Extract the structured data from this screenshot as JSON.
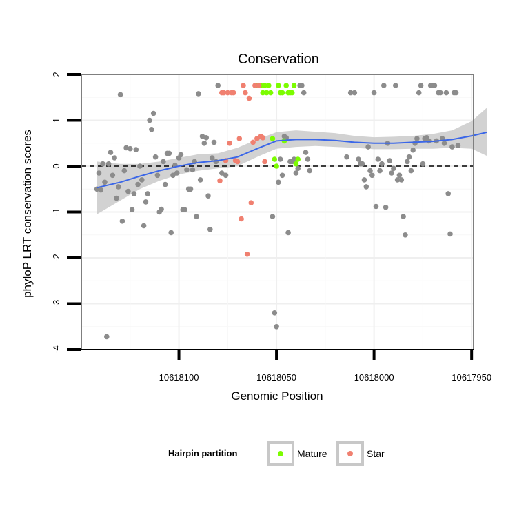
{
  "colors": {
    "other": "#8c8c8c",
    "mature": "#7cfc00",
    "star": "#f08070",
    "smooth": "#3a66e8",
    "ribbon": "#c7c7c7",
    "frame": "#7f7f7f",
    "grid": "#efefef"
  },
  "chart_data": {
    "type": "scatter",
    "title": "Conservation",
    "xlabel": "Genomic Position",
    "ylabel": "phyloP LRT conservation scores",
    "xlim": [
      10618150,
      10617949
    ],
    "x_reversed": true,
    "ylim": [
      -4,
      2
    ],
    "x_ticks": [
      10618100,
      10618050,
      10618000,
      10617950
    ],
    "x_tick_labels": [
      "10618100",
      "10618050",
      "10618000",
      "10617950"
    ],
    "y_ticks": [
      -4,
      -3,
      -2,
      -1,
      0,
      1,
      2
    ],
    "y_tick_labels": [
      "-4",
      "-3",
      "-2",
      "-1",
      "0",
      "1",
      "2"
    ],
    "reference_line": {
      "y": 0,
      "style": "dashed"
    },
    "grid": true,
    "legend": {
      "title": "Hairpin partition",
      "position": "bottom",
      "entries": [
        {
          "name": "Mature",
          "color_key": "mature"
        },
        {
          "name": "Star",
          "color_key": "star"
        }
      ]
    },
    "series": [
      {
        "name": "",
        "color_key": "other",
        "points": [
          [
            10618142,
            -0.5
          ],
          [
            10618141,
            -0.15
          ],
          [
            10618140,
            -0.52
          ],
          [
            10618139,
            0.05
          ],
          [
            10618138,
            -0.35
          ],
          [
            10618137,
            -3.72
          ],
          [
            10618136,
            0.05
          ],
          [
            10618135,
            0.3
          ],
          [
            10618134,
            -0.2
          ],
          [
            10618133,
            0.18
          ],
          [
            10618132,
            -0.7
          ],
          [
            10618131,
            -0.45
          ],
          [
            10618130,
            1.56
          ],
          [
            10618129,
            -1.2
          ],
          [
            10618128,
            -0.1
          ],
          [
            10618127,
            0.4
          ],
          [
            10618126,
            -0.55
          ],
          [
            10618125,
            0.38
          ],
          [
            10618124,
            -0.95
          ],
          [
            10618123,
            -0.6
          ],
          [
            10618122,
            0.36
          ],
          [
            10618121,
            -0.4
          ],
          [
            10618120,
            0.0
          ],
          [
            10618119,
            -0.3
          ],
          [
            10618118,
            -1.3
          ],
          [
            10618117,
            -0.78
          ],
          [
            10618116,
            -0.6
          ],
          [
            10618115,
            1.0
          ],
          [
            10618114,
            0.8
          ],
          [
            10618113,
            1.15
          ],
          [
            10618112,
            0.2
          ],
          [
            10618111,
            -0.2
          ],
          [
            10618110,
            -1.0
          ],
          [
            10618109,
            -0.94
          ],
          [
            10618108,
            0.1
          ],
          [
            10618107,
            -0.4
          ],
          [
            10618106,
            0.28
          ],
          [
            10618105,
            0.28
          ],
          [
            10618104,
            -1.45
          ],
          [
            10618103,
            -0.2
          ],
          [
            10618102,
            0.02
          ],
          [
            10618101,
            -0.15
          ],
          [
            10618100,
            0.18
          ],
          [
            10618099,
            0.25
          ],
          [
            10618098,
            -0.95
          ],
          [
            10618097,
            -0.95
          ],
          [
            10618096,
            -0.08
          ],
          [
            10618095,
            -0.5
          ],
          [
            10618094,
            -0.5
          ],
          [
            10618093,
            -0.08
          ],
          [
            10618092,
            0.1
          ],
          [
            10618091,
            -1.1
          ],
          [
            10618090,
            1.58
          ],
          [
            10618089,
            -0.3
          ],
          [
            10618088,
            0.65
          ],
          [
            10618087,
            0.5
          ],
          [
            10618086,
            0.62
          ],
          [
            10618085,
            -0.65
          ],
          [
            10618084,
            -1.38
          ],
          [
            10618083,
            0.18
          ],
          [
            10618082,
            0.52
          ],
          [
            10618081,
            0.1
          ],
          [
            10618080,
            1.76
          ],
          [
            10618078,
            -0.15
          ],
          [
            10618076,
            -0.2
          ],
          [
            10618052,
            -1.1
          ],
          [
            10618051,
            -3.2
          ],
          [
            10618050,
            -3.5
          ],
          [
            10618049,
            -0.35
          ],
          [
            10618048,
            0.15
          ],
          [
            10618047,
            -0.2
          ],
          [
            10618046,
            0.65
          ],
          [
            10618045,
            0.62
          ],
          [
            10618044,
            -1.45
          ],
          [
            10618043,
            0.1
          ],
          [
            10618042,
            0.1
          ],
          [
            10618041,
            0.15
          ],
          [
            10618040,
            -0.15
          ],
          [
            10618039,
            -0.05
          ],
          [
            10618038,
            1.76
          ],
          [
            10618037,
            1.76
          ],
          [
            10618036,
            1.6
          ],
          [
            10618035,
            0.3
          ],
          [
            10618034,
            0.15
          ],
          [
            10618033,
            -0.1
          ],
          [
            10618014,
            0.2
          ],
          [
            10618012,
            1.6
          ],
          [
            10618010,
            1.6
          ],
          [
            10618008,
            0.15
          ],
          [
            10618007,
            0.05
          ],
          [
            10618006,
            0.05
          ],
          [
            10618005,
            -0.3
          ],
          [
            10618004,
            -0.45
          ],
          [
            10618003,
            0.42
          ],
          [
            10618002,
            -0.1
          ],
          [
            10618001,
            -0.2
          ],
          [
            10618000,
            1.6
          ],
          [
            10617999,
            -0.88
          ],
          [
            10617998,
            0.15
          ],
          [
            10617997,
            -0.1
          ],
          [
            10617996,
            0.05
          ],
          [
            10617995,
            1.76
          ],
          [
            10617994,
            -0.9
          ],
          [
            10617993,
            0.5
          ],
          [
            10617992,
            0.12
          ],
          [
            10617991,
            -0.15
          ],
          [
            10617990,
            -0.05
          ],
          [
            10617989,
            1.76
          ],
          [
            10617988,
            -0.3
          ],
          [
            10617987,
            -0.2
          ],
          [
            10617986,
            -0.3
          ],
          [
            10617985,
            -1.1
          ],
          [
            10617984,
            -1.5
          ],
          [
            10617983,
            0.1
          ],
          [
            10617982,
            0.2
          ],
          [
            10617981,
            -0.1
          ],
          [
            10617980,
            0.35
          ],
          [
            10617979,
            0.5
          ],
          [
            10617978,
            0.6
          ],
          [
            10617977,
            1.6
          ],
          [
            10617976,
            1.76
          ],
          [
            10617975,
            0.05
          ],
          [
            10617974,
            0.6
          ],
          [
            10617973,
            0.62
          ],
          [
            10617972,
            0.55
          ],
          [
            10617971,
            1.76
          ],
          [
            10617970,
            1.76
          ],
          [
            10617969,
            1.76
          ],
          [
            10617968,
            0.55
          ],
          [
            10617967,
            1.6
          ],
          [
            10617966,
            1.6
          ],
          [
            10617965,
            0.6
          ],
          [
            10617964,
            0.5
          ],
          [
            10617963,
            1.6
          ],
          [
            10617962,
            -0.6
          ],
          [
            10617961,
            -1.48
          ],
          [
            10617960,
            0.42
          ],
          [
            10617959,
            1.6
          ],
          [
            10617958,
            1.6
          ],
          [
            10617957,
            0.45
          ]
        ]
      },
      {
        "name": "Mature",
        "color_key": "mature",
        "points": [
          [
            10618060,
            1.76
          ],
          [
            10618059,
            1.76
          ],
          [
            10618058,
            1.76
          ],
          [
            10618057,
            1.6
          ],
          [
            10618056,
            1.76
          ],
          [
            10618055,
            1.6
          ],
          [
            10618054,
            1.76
          ],
          [
            10618053,
            1.6
          ],
          [
            10618052,
            0.6
          ],
          [
            10618051,
            0.15
          ],
          [
            10618050,
            0.0
          ],
          [
            10618049,
            1.76
          ],
          [
            10618048,
            1.6
          ],
          [
            10618047,
            1.6
          ],
          [
            10618046,
            0.55
          ],
          [
            10618045,
            1.76
          ],
          [
            10618044,
            1.6
          ],
          [
            10618043,
            1.6
          ],
          [
            10618042,
            1.6
          ],
          [
            10618041,
            1.76
          ],
          [
            10618040,
            0.05
          ],
          [
            10618039,
            0.15
          ]
        ]
      },
      {
        "name": "Star",
        "color_key": "star",
        "points": [
          [
            10618079,
            -0.32
          ],
          [
            10618078,
            1.6
          ],
          [
            10618077,
            1.6
          ],
          [
            10618076,
            0.12
          ],
          [
            10618075,
            1.6
          ],
          [
            10618074,
            0.5
          ],
          [
            10618073,
            1.6
          ],
          [
            10618072,
            1.6
          ],
          [
            10618071,
            0.12
          ],
          [
            10618070,
            0.1
          ],
          [
            10618069,
            0.6
          ],
          [
            10618068,
            -1.15
          ],
          [
            10618067,
            1.76
          ],
          [
            10618066,
            1.6
          ],
          [
            10618065,
            -1.92
          ],
          [
            10618064,
            1.48
          ],
          [
            10618063,
            -0.8
          ],
          [
            10618062,
            0.52
          ],
          [
            10618061,
            1.76
          ],
          [
            10618060,
            0.6
          ],
          [
            10618059,
            1.76
          ],
          [
            10618058,
            0.65
          ],
          [
            10618057,
            0.62
          ],
          [
            10618056,
            0.1
          ]
        ]
      }
    ],
    "smooth": {
      "x": [
        10618142,
        10618130,
        10618120,
        10618110,
        10618100,
        10618090,
        10618080,
        10618070,
        10618060,
        10618050,
        10618040,
        10618030,
        10618020,
        10618010,
        10618000,
        10617990,
        10617980,
        10617970,
        10617960,
        10617950,
        10617942
      ],
      "y": [
        -0.47,
        -0.35,
        -0.22,
        -0.1,
        0.0,
        0.08,
        0.12,
        0.2,
        0.38,
        0.55,
        0.58,
        0.58,
        0.56,
        0.52,
        0.5,
        0.5,
        0.52,
        0.54,
        0.58,
        0.66,
        0.74
      ],
      "ymin": [
        -1.05,
        -0.75,
        -0.5,
        -0.32,
        -0.18,
        -0.1,
        -0.05,
        0.0,
        0.2,
        0.38,
        0.42,
        0.44,
        0.42,
        0.4,
        0.37,
        0.37,
        0.38,
        0.38,
        0.4,
        0.38,
        0.22
      ],
      "ymax": [
        0.1,
        0.05,
        0.05,
        0.1,
        0.18,
        0.26,
        0.28,
        0.4,
        0.58,
        0.74,
        0.78,
        0.75,
        0.72,
        0.66,
        0.63,
        0.64,
        0.66,
        0.7,
        0.78,
        0.98,
        1.28
      ]
    }
  }
}
